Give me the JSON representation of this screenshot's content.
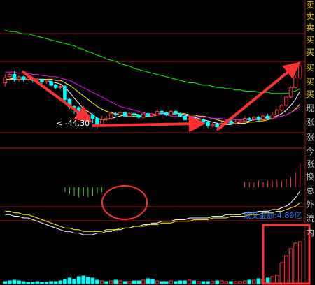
{
  "side_panel": {
    "items": [
      "卖",
      "卖",
      "卖",
      "买",
      "买",
      "买",
      "买",
      "买",
      "现",
      "涨",
      "涨",
      "今",
      "涨",
      "换",
      "总",
      "外",
      "流",
      "内"
    ]
  },
  "labels": {
    "min_price": "< -44.30",
    "turnover": "成交金额:4.89亿"
  },
  "colors": {
    "up": "#ff3b3b",
    "down": "#00ffff",
    "ma_white": "#ffffff",
    "ma_yellow": "#ffff00",
    "ma_magenta": "#ff00ff",
    "ma_green": "#00ff00",
    "annotation": "#ff3030",
    "grid": "#a01818",
    "macd_neg": "#3ad43a",
    "macd_pos": "#ff3b3b"
  },
  "chart_data": {
    "type": "candlestick",
    "candles": [
      {
        "o": 94,
        "c": 98,
        "h": 101,
        "l": 91
      },
      {
        "o": 99,
        "c": 101,
        "h": 103,
        "l": 96
      },
      {
        "o": 101,
        "c": 97,
        "h": 104,
        "l": 95
      },
      {
        "o": 97,
        "c": 99,
        "h": 100,
        "l": 95
      },
      {
        "o": 99,
        "c": 97,
        "h": 100,
        "l": 95
      },
      {
        "o": 97,
        "c": 98,
        "h": 99,
        "l": 96
      },
      {
        "o": 98,
        "c": 96,
        "h": 99,
        "l": 94
      },
      {
        "o": 96,
        "c": 97,
        "h": 98,
        "l": 94
      },
      {
        "o": 97,
        "c": 95,
        "h": 97,
        "l": 93
      },
      {
        "o": 95,
        "c": 96,
        "h": 97,
        "l": 93
      },
      {
        "o": 95,
        "c": 92,
        "h": 96,
        "l": 91
      },
      {
        "o": 92,
        "c": 90,
        "h": 93,
        "l": 89
      },
      {
        "o": 90,
        "c": 91,
        "h": 92,
        "l": 89
      },
      {
        "o": 91,
        "c": 80,
        "h": 92,
        "l": 78
      },
      {
        "o": 80,
        "c": 74,
        "h": 81,
        "l": 72
      },
      {
        "o": 74,
        "c": 73,
        "h": 75,
        "l": 68
      },
      {
        "o": 73,
        "c": 68,
        "h": 74,
        "l": 66
      },
      {
        "o": 68,
        "c": 66,
        "h": 69,
        "l": 60
      },
      {
        "o": 66,
        "c": 67,
        "h": 68,
        "l": 63
      },
      {
        "o": 67,
        "c": 64,
        "h": 68,
        "l": 60
      },
      {
        "o": 64,
        "c": 59,
        "h": 65,
        "l": 56
      },
      {
        "o": 59,
        "c": 63,
        "h": 66,
        "l": 58
      },
      {
        "o": 63,
        "c": 64,
        "h": 66,
        "l": 62
      },
      {
        "o": 64,
        "c": 68,
        "h": 70,
        "l": 63
      },
      {
        "o": 68,
        "c": 67,
        "h": 69,
        "l": 66
      },
      {
        "o": 67,
        "c": 69,
        "h": 70,
        "l": 66
      },
      {
        "o": 69,
        "c": 66,
        "h": 70,
        "l": 65
      },
      {
        "o": 66,
        "c": 68,
        "h": 69,
        "l": 65
      },
      {
        "o": 68,
        "c": 67,
        "h": 69,
        "l": 66
      },
      {
        "o": 67,
        "c": 65,
        "h": 68,
        "l": 64
      },
      {
        "o": 65,
        "c": 68,
        "h": 69,
        "l": 64
      },
      {
        "o": 68,
        "c": 66,
        "h": 69,
        "l": 65
      },
      {
        "o": 66,
        "c": 67,
        "h": 68,
        "l": 65
      },
      {
        "o": 67,
        "c": 70,
        "h": 72,
        "l": 66
      },
      {
        "o": 70,
        "c": 69,
        "h": 71,
        "l": 67
      },
      {
        "o": 69,
        "c": 67,
        "h": 70,
        "l": 66
      },
      {
        "o": 67,
        "c": 70,
        "h": 71,
        "l": 66
      },
      {
        "o": 70,
        "c": 68,
        "h": 71,
        "l": 67
      },
      {
        "o": 68,
        "c": 66,
        "h": 69,
        "l": 65
      },
      {
        "o": 66,
        "c": 63,
        "h": 67,
        "l": 62
      },
      {
        "o": 63,
        "c": 64,
        "h": 66,
        "l": 62
      },
      {
        "o": 64,
        "c": 61,
        "h": 65,
        "l": 60
      },
      {
        "o": 61,
        "c": 63,
        "h": 64,
        "l": 60
      },
      {
        "o": 63,
        "c": 61,
        "h": 64,
        "l": 60
      },
      {
        "o": 61,
        "c": 58,
        "h": 62,
        "l": 56
      },
      {
        "o": 58,
        "c": 59,
        "h": 60,
        "l": 57
      },
      {
        "o": 59,
        "c": 57,
        "h": 61,
        "l": 56
      },
      {
        "o": 57,
        "c": 60,
        "h": 62,
        "l": 56
      },
      {
        "o": 60,
        "c": 62,
        "h": 63,
        "l": 59
      },
      {
        "o": 62,
        "c": 60,
        "h": 64,
        "l": 59
      },
      {
        "o": 60,
        "c": 61,
        "h": 63,
        "l": 59
      },
      {
        "o": 61,
        "c": 62,
        "h": 63,
        "l": 60
      },
      {
        "o": 62,
        "c": 64,
        "h": 66,
        "l": 61
      },
      {
        "o": 64,
        "c": 63,
        "h": 65,
        "l": 62
      },
      {
        "o": 63,
        "c": 65,
        "h": 66,
        "l": 62
      },
      {
        "o": 65,
        "c": 63,
        "h": 66,
        "l": 62
      },
      {
        "o": 63,
        "c": 66,
        "h": 67,
        "l": 62
      },
      {
        "o": 66,
        "c": 64,
        "h": 68,
        "l": 63
      },
      {
        "o": 64,
        "c": 67,
        "h": 69,
        "l": 63
      },
      {
        "o": 67,
        "c": 71,
        "h": 72,
        "l": 66
      },
      {
        "o": 71,
        "c": 75,
        "h": 76,
        "l": 70
      },
      {
        "o": 75,
        "c": 82,
        "h": 83,
        "l": 74
      },
      {
        "o": 82,
        "c": 90,
        "h": 91,
        "l": 81
      },
      {
        "o": 90,
        "c": 98,
        "h": 100,
        "l": 89
      },
      {
        "o": 98,
        "c": 108,
        "h": 112,
        "l": 97
      }
    ],
    "moving_averages": [
      {
        "name": "MA5",
        "color": "#ffffff",
        "values": [
          96,
          97,
          98,
          98,
          98,
          98,
          97,
          97,
          97,
          96,
          95,
          94,
          93,
          90,
          86,
          81,
          77,
          72,
          70,
          67,
          64,
          63,
          63,
          64,
          65,
          66,
          67,
          67,
          68,
          67,
          67,
          67,
          67,
          68,
          68,
          68,
          68,
          69,
          68,
          67,
          66,
          65,
          64,
          63,
          62,
          61,
          60,
          59,
          59,
          59,
          60,
          61,
          61,
          62,
          63,
          64,
          64,
          65,
          65,
          66,
          68,
          71,
          75,
          80,
          87
        ]
      },
      {
        "name": "MA10",
        "color": "#ffff00",
        "values": [
          97,
          97,
          97,
          97,
          97,
          97,
          97,
          97,
          97,
          97,
          97,
          96,
          96,
          94,
          92,
          89,
          86,
          83,
          80,
          77,
          74,
          72,
          70,
          69,
          68,
          67,
          66,
          66,
          66,
          66,
          66,
          66,
          66,
          67,
          67,
          67,
          67,
          68,
          68,
          68,
          67,
          67,
          66,
          66,
          65,
          64,
          63,
          62,
          61,
          61,
          60,
          60,
          60,
          61,
          61,
          62,
          62,
          63,
          64,
          65,
          66,
          67,
          69,
          72,
          76
        ]
      },
      {
        "name": "MA20",
        "color": "#ff00ff",
        "values": [
          103,
          103,
          103,
          102,
          102,
          102,
          101,
          101,
          100,
          100,
          99,
          99,
          98,
          97,
          96,
          94,
          92,
          90,
          88,
          86,
          84,
          82,
          80,
          78,
          76,
          74,
          73,
          72,
          71,
          70,
          69,
          68,
          68,
          67,
          67,
          67,
          66,
          66,
          66,
          66,
          66,
          66,
          65,
          65,
          65,
          64,
          64,
          64,
          63,
          63,
          63,
          63,
          63,
          63,
          63,
          63,
          63,
          64,
          64,
          65,
          66,
          67,
          69,
          71,
          74
        ]
      },
      {
        "name": "MA60",
        "color": "#00ff00",
        "values": [
          138,
          137,
          137,
          136,
          135,
          135,
          134,
          133,
          132,
          131,
          130,
          129,
          128,
          127,
          126,
          125,
          123,
          122,
          120,
          119,
          117,
          116,
          114,
          113,
          112,
          110,
          109,
          108,
          106,
          105,
          104,
          103,
          102,
          101,
          100,
          99,
          98,
          97,
          96,
          95,
          94,
          94,
          93,
          92,
          92,
          91,
          90,
          90,
          89,
          89,
          88,
          88,
          87,
          87,
          87,
          86,
          86,
          86,
          85,
          85,
          85,
          85,
          86,
          87,
          89
        ]
      }
    ],
    "macd": {
      "dif": [
        -8,
        -8,
        -9,
        -9,
        -10,
        -10,
        -11,
        -12,
        -13,
        -14,
        -15,
        -16,
        -17,
        -18,
        -18,
        -19,
        -19,
        -20,
        -20,
        -20,
        -19,
        -19,
        -18,
        -18,
        -17,
        -17,
        -16,
        -16,
        -15,
        -15,
        -14,
        -14,
        -13,
        -13,
        -12,
        -12,
        -12,
        -11,
        -11,
        -11,
        -10,
        -10,
        -10,
        -10,
        -10,
        -9,
        -9,
        -9,
        -8,
        -8,
        -8,
        -8,
        -7,
        -7,
        -7,
        -6,
        -6,
        -6,
        -5,
        -5,
        -4,
        -3,
        -1,
        2,
        6
      ],
      "dea": [
        -6,
        -6,
        -7,
        -7,
        -8,
        -8,
        -9,
        -10,
        -11,
        -12,
        -13,
        -14,
        -15,
        -16,
        -16,
        -17,
        -17,
        -18,
        -18,
        -18,
        -18,
        -18,
        -17,
        -17,
        -17,
        -16,
        -16,
        -16,
        -15,
        -15,
        -15,
        -14,
        -14,
        -14,
        -13,
        -13,
        -13,
        -12,
        -12,
        -12,
        -12,
        -11,
        -11,
        -11,
        -11,
        -10,
        -10,
        -10,
        -10,
        -9,
        -9,
        -9,
        -9,
        -8,
        -8,
        -8,
        -7,
        -7,
        -7,
        -6,
        -6,
        -5,
        -4,
        -3,
        -1
      ],
      "hist": [
        0,
        0,
        0,
        0,
        0,
        0,
        0,
        0,
        0,
        0,
        0,
        0,
        0,
        -3,
        -4,
        -5,
        -6,
        -5,
        -6,
        -5,
        -4,
        -3,
        0,
        0,
        0,
        0,
        0,
        0,
        0,
        0,
        0,
        0,
        0,
        0,
        0,
        0,
        0,
        0,
        0,
        0,
        0,
        0,
        0,
        0,
        0,
        0,
        0,
        0,
        0,
        0,
        0,
        0,
        3,
        3,
        3,
        4,
        3,
        4,
        4,
        4,
        4,
        5,
        6,
        9,
        14
      ]
    },
    "volume": {
      "values": [
        3,
        4,
        5,
        4,
        3,
        2,
        2,
        3,
        2,
        2,
        3,
        3,
        4,
        6,
        8,
        6,
        10,
        11,
        9,
        8,
        5,
        4,
        3,
        4,
        5,
        4,
        3,
        3,
        4,
        4,
        5,
        7,
        6,
        4,
        3,
        3,
        4,
        3,
        4,
        4,
        5,
        4,
        3,
        3,
        3,
        3,
        4,
        4,
        3,
        3,
        3,
        3,
        4,
        5,
        5,
        7,
        6,
        8,
        10,
        12,
        30,
        40,
        50,
        58,
        60
      ],
      "up": [
        false,
        false,
        false,
        false,
        false,
        false,
        false,
        false,
        false,
        false,
        false,
        false,
        false,
        false,
        false,
        false,
        false,
        false,
        false,
        false,
        false,
        true,
        false,
        true,
        false,
        true,
        false,
        true,
        false,
        false,
        true,
        false,
        false,
        true,
        false,
        false,
        true,
        false,
        false,
        false,
        true,
        false,
        true,
        false,
        false,
        true,
        false,
        true,
        true,
        false,
        true,
        true,
        true,
        false,
        true,
        false,
        true,
        false,
        true,
        true,
        true,
        true,
        true,
        true,
        true
      ]
    }
  }
}
